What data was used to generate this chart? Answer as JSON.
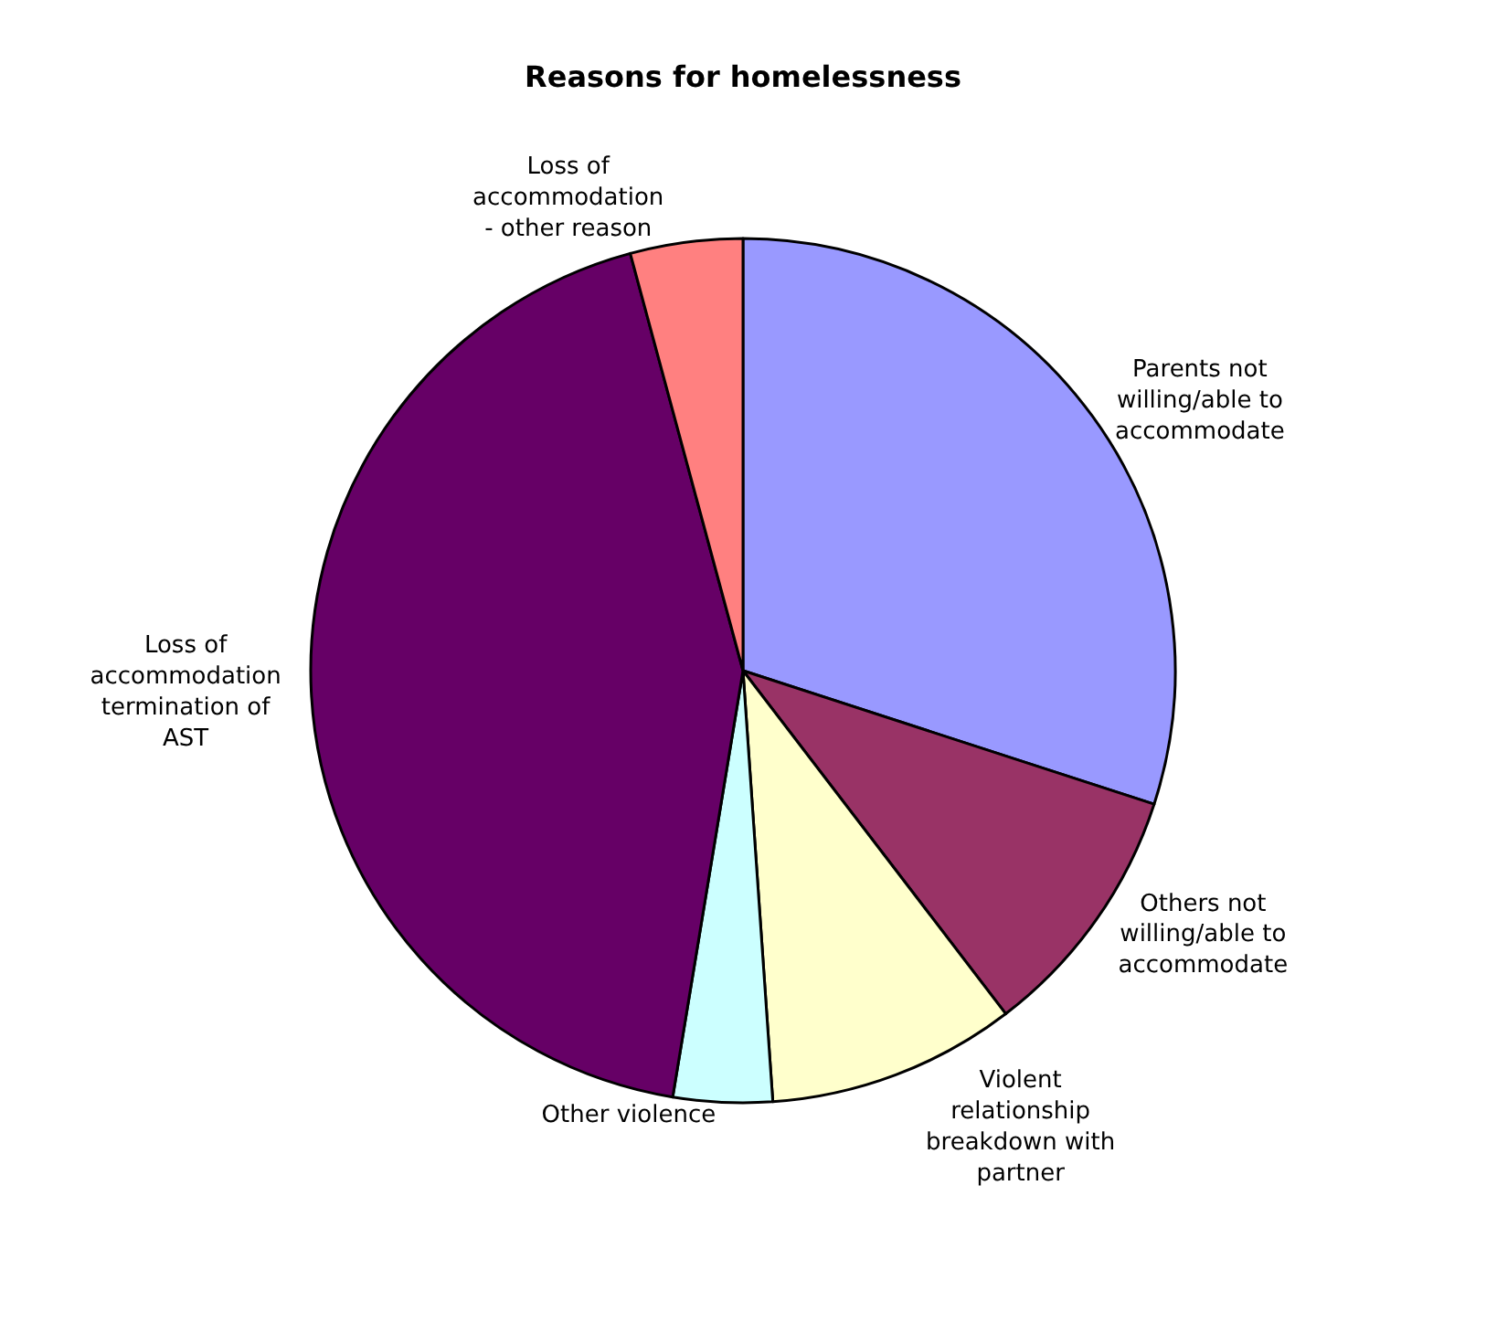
{
  "chart_data": {
    "type": "pie",
    "title": "Reasons for homelessness",
    "categories": [
      "Parents not\nwilling/able to\naccommodate",
      "Others not\nwilling/able to\naccommodate",
      "Violent\nrelationship\nbreakdown with\npartner",
      "Other violence",
      "Loss of\naccommodation\ntermination of\nAST",
      "Loss of\naccommodation\n- other reason"
    ],
    "values": [
      30.0,
      9.6,
      9.3,
      3.7,
      43.2,
      4.2
    ],
    "colors": [
      "#9999ff",
      "#993366",
      "#ffffcc",
      "#ccffff",
      "#660066",
      "#ff8080"
    ],
    "legend": false
  }
}
